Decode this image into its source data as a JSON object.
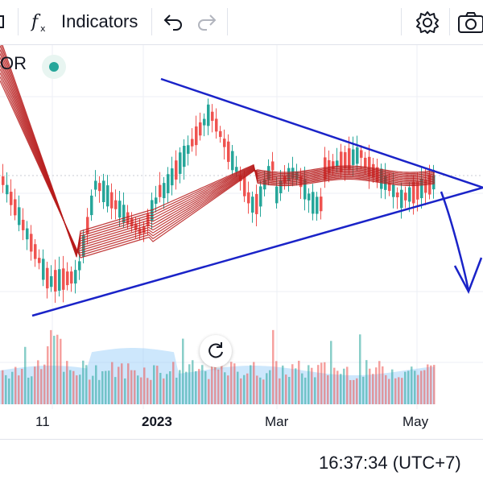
{
  "toolbar": {
    "indicators_label": "Indicators"
  },
  "legend": {
    "symbol_text": "OR"
  },
  "xaxis": {
    "labels": [
      "11",
      "2023",
      "Mar",
      "May"
    ]
  },
  "status": {
    "clock": "16:37:34 (UTC+7)"
  },
  "colors": {
    "up": "#26a69a",
    "down": "#ef5350",
    "trendline": "#1a23c8",
    "ribbon": "#b71c1c",
    "volume_area": "#90caf9"
  }
}
